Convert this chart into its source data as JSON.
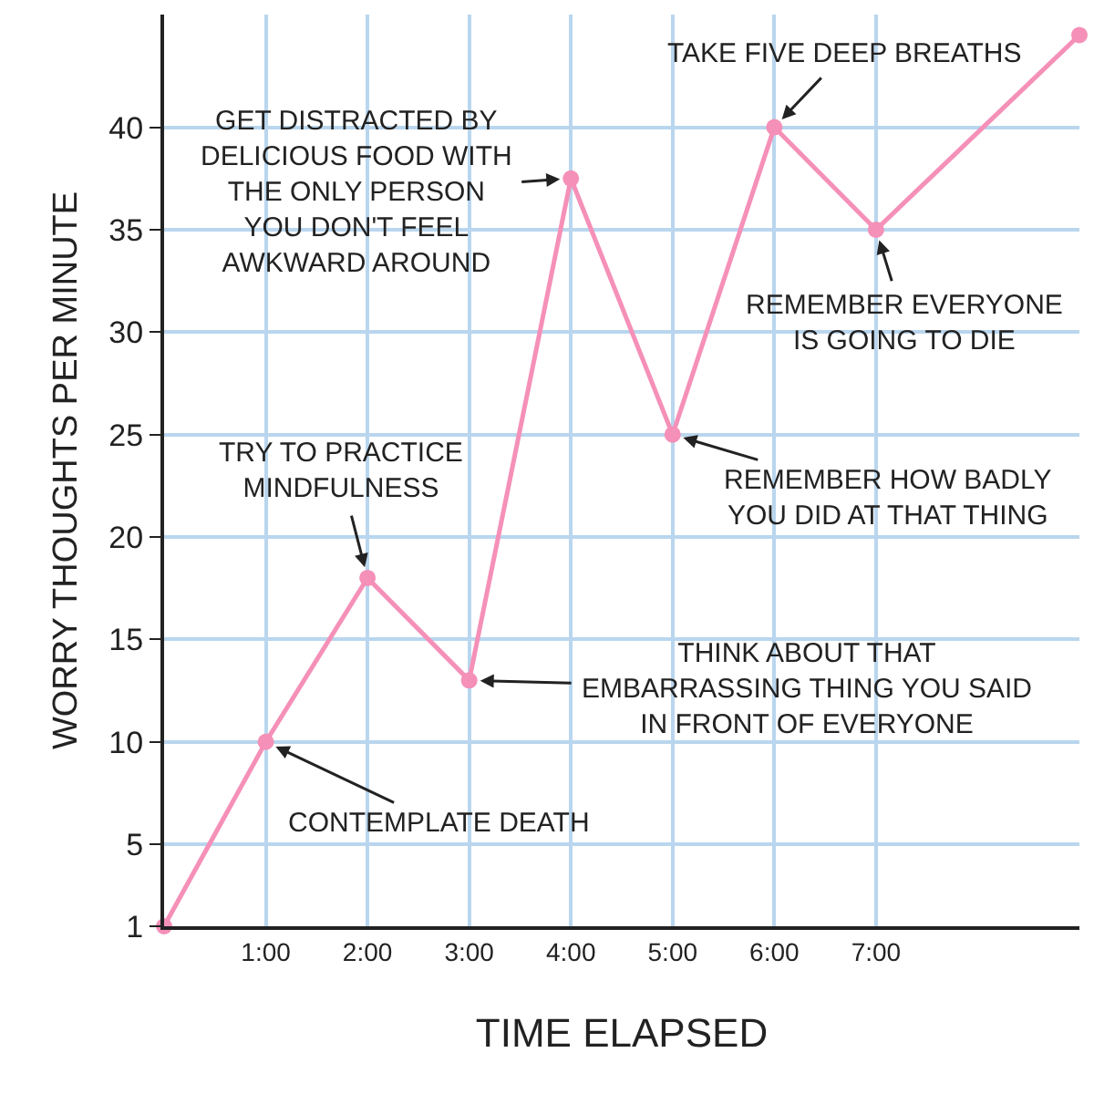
{
  "chart_data": {
    "type": "line",
    "xlabel": "TIME ELAPSED",
    "ylabel": "WORRY THOUGHTS PER MINUTE",
    "x": [
      0,
      1,
      2,
      3,
      4,
      5,
      6,
      7,
      9
    ],
    "series": [
      {
        "color": "#f590b8",
        "values": [
          1,
          10,
          18,
          13,
          37.5,
          25,
          40,
          35,
          44.5
        ]
      }
    ],
    "xlim": [
      0,
      9
    ],
    "ylim": [
      1,
      45.5
    ],
    "xticks": [
      {
        "value": 1,
        "label": "1:00"
      },
      {
        "value": 2,
        "label": "2:00"
      },
      {
        "value": 3,
        "label": "3:00"
      },
      {
        "value": 4,
        "label": "4:00"
      },
      {
        "value": 5,
        "label": "5:00"
      },
      {
        "value": 6,
        "label": "6:00"
      },
      {
        "value": 7,
        "label": "7:00"
      }
    ],
    "yticks": [
      1,
      5,
      10,
      15,
      20,
      25,
      30,
      35,
      40
    ],
    "grid": true,
    "marker": "circle",
    "line_style": "solid",
    "annotations": [
      {
        "text": "CONTEMPLATE DEATH",
        "x": 1,
        "y": 10
      },
      {
        "text": "TRY TO PRACTICE\nMINDFULNESS",
        "x": 2,
        "y": 18
      },
      {
        "text": "THINK ABOUT THAT\nEMBARRASSING THING YOU SAID\nIN FRONT OF EVERYONE",
        "x": 3,
        "y": 13
      },
      {
        "text": "GET DISTRACTED BY\nDELICIOUS FOOD WITH\nTHE ONLY PERSON\nYOU DON'T FEEL\nAWKWARD AROUND",
        "x": 4,
        "y": 37.5
      },
      {
        "text": "REMEMBER HOW BADLY\nYOU DID AT THAT THING",
        "x": 5,
        "y": 25
      },
      {
        "text": "TAKE FIVE DEEP BREATHS",
        "x": 6,
        "y": 40
      },
      {
        "text": "REMEMBER EVERYONE\nIS GOING TO DIE",
        "x": 7,
        "y": 35
      }
    ]
  }
}
